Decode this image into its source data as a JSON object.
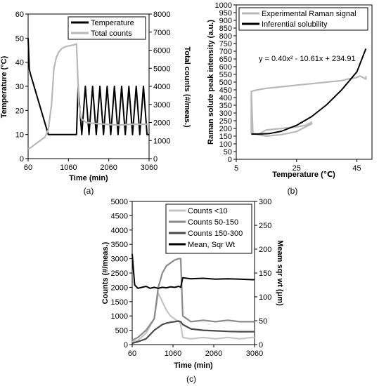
{
  "chart_data": [
    {
      "panel": "(a)",
      "type": "line",
      "xlabel": "Time (min)",
      "ylabel": "Temperature (°C)",
      "y2label": "Total counts (#/meas.)",
      "xlim": [
        60,
        3060
      ],
      "ylim": [
        0,
        60
      ],
      "y2lim": [
        0,
        8000
      ],
      "xticks": [
        "60",
        "1060",
        "2060",
        "3060"
      ],
      "yticks": [
        "0",
        "10",
        "20",
        "30",
        "40",
        "50",
        "60"
      ],
      "y2ticks": [
        "0",
        "1000",
        "2000",
        "3000",
        "4000",
        "5000",
        "6000",
        "7000",
        "8000"
      ],
      "legend": [
        "Temperature",
        "Total counts"
      ],
      "legend_position": "top-right",
      "series": [
        {
          "name": "Temperature",
          "axis": "left",
          "color": "#000000",
          "x": [
            60,
            90,
            120,
            560,
            700,
            1260,
            1300,
            1390,
            1480,
            1570,
            1660,
            1750,
            1840,
            1930,
            2020,
            2110,
            2200,
            2290,
            2380,
            2470,
            2560,
            2650,
            2740,
            2830,
            2920,
            3010,
            3060
          ],
          "y": [
            50,
            37,
            35,
            10,
            10,
            10,
            30,
            10,
            30,
            10,
            30,
            10,
            30,
            10,
            30,
            10,
            30,
            10,
            30,
            10,
            30,
            10,
            30,
            10,
            30,
            10,
            10
          ]
        },
        {
          "name": "Total counts",
          "axis": "right",
          "color": "#b8b8b8",
          "x": [
            60,
            120,
            240,
            480,
            560,
            640,
            700,
            760,
            820,
            900,
            1000,
            1100,
            1200,
            1260,
            1320,
            1380,
            1500,
            1700,
            2000,
            2300,
            2600,
            2900,
            3060
          ],
          "y": [
            550,
            600,
            800,
            1200,
            1600,
            3000,
            5000,
            5600,
            5900,
            6100,
            6200,
            6250,
            6300,
            6350,
            3000,
            2200,
            2000,
            1950,
            1900,
            1850,
            1900,
            1900,
            1900
          ]
        }
      ]
    },
    {
      "panel": "(b)",
      "type": "scatter",
      "xlabel": "Temperature (℃)",
      "ylabel": "Raman solute peak intensity (a.u.)",
      "xlim": [
        5,
        50
      ],
      "ylim": [
        0,
        1000
      ],
      "xticks": [
        "5",
        "25",
        "45"
      ],
      "yticks": [
        "0",
        "50",
        "100",
        "150",
        "200",
        "250",
        "300",
        "350",
        "400",
        "450",
        "500",
        "550",
        "600",
        "650",
        "700",
        "750",
        "800",
        "850",
        "900",
        "950",
        "1000"
      ],
      "legend": [
        "Experimental Raman signal",
        "Inferential solubility"
      ],
      "legend_position": "top",
      "annotation": "y = 0.40x² - 10.61x + 234.91",
      "series": [
        {
          "name": "Experimental Raman signal",
          "color": "#b8b8b8",
          "x": [
            10,
            10.5,
            12,
            15,
            20,
            25,
            28,
            30,
            30,
            25,
            20,
            15,
            12,
            10,
            10,
            12,
            15,
            20,
            25,
            30,
            35,
            40,
            42,
            45,
            46,
            48,
            48
          ],
          "y": [
            440,
            170,
            160,
            190,
            200,
            210,
            220,
            240,
            230,
            180,
            160,
            150,
            160,
            170,
            440,
            450,
            460,
            470,
            480,
            490,
            500,
            510,
            520,
            530,
            540,
            520,
            540
          ]
        },
        {
          "name": "Inferential solubility",
          "color": "#000000",
          "x": [
            10,
            13.26,
            16,
            20,
            25,
            30,
            35,
            40,
            45,
            48
          ],
          "y": [
            163,
            164,
            167,
            182,
            220,
            277,
            354,
            451,
            567,
            717
          ]
        }
      ]
    },
    {
      "panel": "(c)",
      "type": "line",
      "xlabel": "Time (min)",
      "ylabel": "Counts (#/meas.)",
      "y2label": "Meam sqr wt (μm)",
      "xlim": [
        60,
        3060
      ],
      "ylim": [
        0,
        5000
      ],
      "y2lim": [
        0,
        300
      ],
      "xticks": [
        "60",
        "1060",
        "2060",
        "3060"
      ],
      "yticks": [
        "0",
        "500",
        "1000",
        "1500",
        "2000",
        "2500",
        "3000",
        "3500",
        "4000",
        "4500",
        "5000"
      ],
      "y2ticks": [
        "0",
        "50",
        "100",
        "150",
        "200",
        "250",
        "300"
      ],
      "legend": [
        "Counts <10",
        "Counts 50-150",
        "Counts 150-300",
        "Mean, Sqr Wt"
      ],
      "legend_position": "top-right",
      "series": [
        {
          "name": "Counts <10",
          "axis": "left",
          "color": "#c4c4c4",
          "x": [
            60,
            200,
            400,
            600,
            700,
            800,
            900,
            1000,
            1100,
            1200,
            1250,
            1300,
            1500,
            1800,
            2100,
            2400,
            2700,
            3000,
            3060
          ],
          "y": [
            100,
            150,
            400,
            900,
            1800,
            1500,
            1200,
            1000,
            900,
            800,
            700,
            250,
            200,
            250,
            200,
            250,
            200,
            250,
            250
          ]
        },
        {
          "name": "Counts 50-150",
          "axis": "left",
          "color": "#8a8a8a",
          "x": [
            60,
            200,
            400,
            600,
            700,
            800,
            900,
            1000,
            1100,
            1200,
            1250,
            1300,
            1500,
            1800,
            2100,
            2400,
            2700,
            3000,
            3060
          ],
          "y": [
            150,
            250,
            500,
            900,
            2000,
            2500,
            2750,
            2850,
            2950,
            3000,
            3000,
            1000,
            800,
            850,
            800,
            850,
            800,
            800,
            800
          ]
        },
        {
          "name": "Counts 150-300",
          "axis": "left",
          "color": "#4a4a4a",
          "x": [
            60,
            200,
            400,
            600,
            700,
            800,
            900,
            1000,
            1100,
            1200,
            1250,
            1300,
            1500,
            1800,
            2100,
            2400,
            2700,
            3000,
            3060
          ],
          "y": [
            50,
            100,
            200,
            500,
            600,
            700,
            750,
            780,
            800,
            820,
            800,
            700,
            550,
            500,
            480,
            460,
            450,
            450,
            450
          ]
        },
        {
          "name": "Mean, Sqr Wt",
          "axis": "right",
          "color": "#000000",
          "x": [
            60,
            120,
            200,
            300,
            400,
            500,
            600,
            700,
            800,
            900,
            1000,
            1100,
            1200,
            1250,
            1300,
            1500,
            1800,
            2100,
            2400,
            2700,
            3000,
            3060
          ],
          "y": [
            190,
            125,
            118,
            120,
            122,
            118,
            120,
            118,
            120,
            119,
            121,
            120,
            122,
            120,
            140,
            138,
            139,
            137,
            138,
            137,
            136,
            136
          ]
        }
      ]
    }
  ]
}
